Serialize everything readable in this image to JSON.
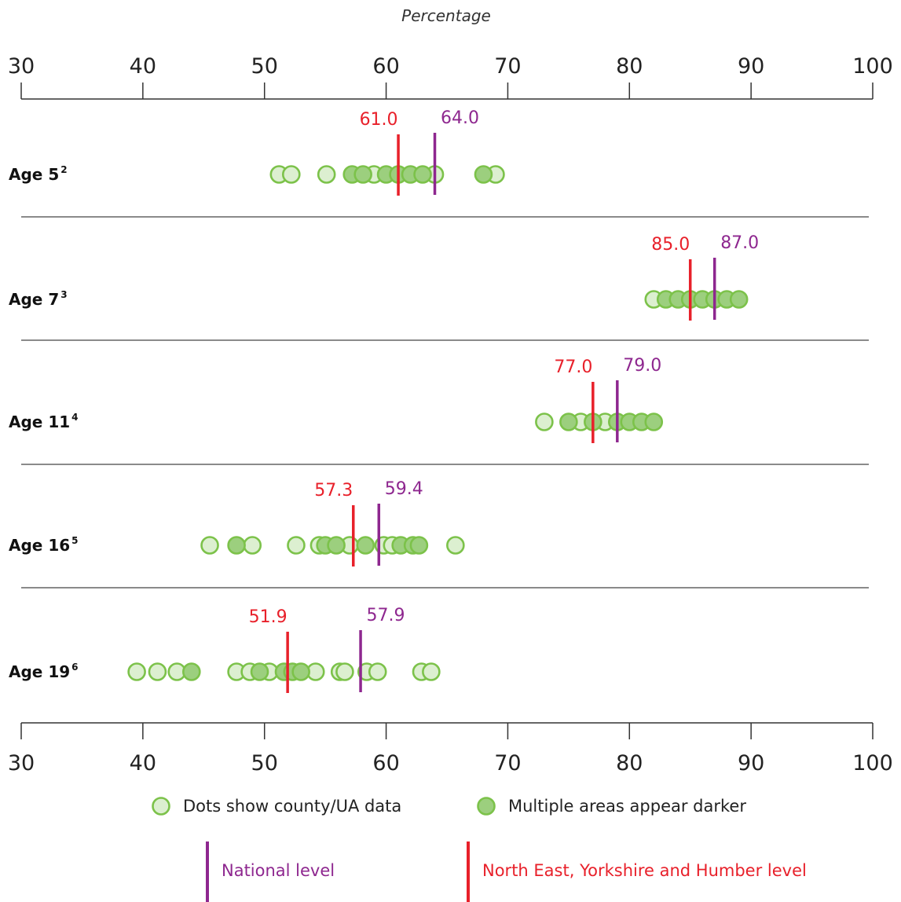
{
  "chart_data": {
    "type": "scatter",
    "title": "",
    "xlabel": "Percentage",
    "xlim": [
      30,
      100
    ],
    "xticks": [
      30,
      40,
      50,
      60,
      70,
      80,
      90,
      100
    ],
    "colors": {
      "dot_fill_single": "#dcefd0",
      "dot_fill_multiple": "#9ccf7e",
      "dot_stroke": "#7cc24a",
      "regional": "#e8202a",
      "national": "#8e278f",
      "axis": "#333333",
      "separator": "#444444"
    },
    "rows": [
      {
        "label": "Age 5",
        "sup": "2",
        "regional": 61.0,
        "regional_label": "61.0",
        "national": 64.0,
        "national_label": "64.0",
        "points": [
          {
            "x": 51.2,
            "m": false
          },
          {
            "x": 52.2,
            "m": false
          },
          {
            "x": 55.1,
            "m": false
          },
          {
            "x": 57.2,
            "m": true
          },
          {
            "x": 58.1,
            "m": true
          },
          {
            "x": 59.0,
            "m": false
          },
          {
            "x": 60.0,
            "m": true
          },
          {
            "x": 61.0,
            "m": true
          },
          {
            "x": 62.0,
            "m": true
          },
          {
            "x": 63.0,
            "m": true
          },
          {
            "x": 64.0,
            "m": false
          },
          {
            "x": 68.0,
            "m": true
          },
          {
            "x": 69.0,
            "m": false
          }
        ]
      },
      {
        "label": "Age 7",
        "sup": "3",
        "regional": 85.0,
        "regional_label": "85.0",
        "national": 87.0,
        "national_label": "87.0",
        "points": [
          {
            "x": 82.0,
            "m": false
          },
          {
            "x": 83.0,
            "m": true
          },
          {
            "x": 84.0,
            "m": true
          },
          {
            "x": 85.0,
            "m": true
          },
          {
            "x": 86.0,
            "m": true
          },
          {
            "x": 87.0,
            "m": true
          },
          {
            "x": 88.0,
            "m": true
          },
          {
            "x": 89.0,
            "m": true
          }
        ]
      },
      {
        "label": "Age 11",
        "sup": "4",
        "regional": 77.0,
        "regional_label": "77.0",
        "national": 79.0,
        "national_label": "79.0",
        "points": [
          {
            "x": 73.0,
            "m": false
          },
          {
            "x": 75.0,
            "m": true
          },
          {
            "x": 76.0,
            "m": false
          },
          {
            "x": 77.0,
            "m": true
          },
          {
            "x": 78.0,
            "m": false
          },
          {
            "x": 79.0,
            "m": true
          },
          {
            "x": 80.0,
            "m": true
          },
          {
            "x": 81.0,
            "m": true
          },
          {
            "x": 82.0,
            "m": true
          }
        ]
      },
      {
        "label": "Age 16",
        "sup": "5",
        "regional": 57.3,
        "regional_label": "57.3",
        "national": 59.4,
        "national_label": "59.4",
        "points": [
          {
            "x": 45.5,
            "m": false
          },
          {
            "x": 47.7,
            "m": true
          },
          {
            "x": 49.0,
            "m": false
          },
          {
            "x": 52.6,
            "m": false
          },
          {
            "x": 54.5,
            "m": false
          },
          {
            "x": 55.0,
            "m": true
          },
          {
            "x": 55.9,
            "m": true
          },
          {
            "x": 57.0,
            "m": false
          },
          {
            "x": 58.3,
            "m": true
          },
          {
            "x": 59.8,
            "m": false
          },
          {
            "x": 60.5,
            "m": false
          },
          {
            "x": 61.2,
            "m": true
          },
          {
            "x": 62.2,
            "m": true
          },
          {
            "x": 62.7,
            "m": true
          },
          {
            "x": 65.7,
            "m": false
          }
        ]
      },
      {
        "label": "Age 19",
        "sup": "6",
        "regional": 51.9,
        "regional_label": "51.9",
        "national": 57.9,
        "national_label": "57.9",
        "points": [
          {
            "x": 39.5,
            "m": false
          },
          {
            "x": 41.2,
            "m": false
          },
          {
            "x": 42.8,
            "m": false
          },
          {
            "x": 44.0,
            "m": true
          },
          {
            "x": 47.7,
            "m": false
          },
          {
            "x": 48.8,
            "m": false
          },
          {
            "x": 49.6,
            "m": true
          },
          {
            "x": 50.4,
            "m": false
          },
          {
            "x": 51.6,
            "m": true
          },
          {
            "x": 52.3,
            "m": true
          },
          {
            "x": 53.0,
            "m": true
          },
          {
            "x": 54.2,
            "m": false
          },
          {
            "x": 56.2,
            "m": false
          },
          {
            "x": 56.6,
            "m": false
          },
          {
            "x": 58.4,
            "m": false
          },
          {
            "x": 59.3,
            "m": false
          },
          {
            "x": 62.9,
            "m": false
          },
          {
            "x": 63.7,
            "m": false
          }
        ]
      }
    ]
  },
  "legend": {
    "single_dot": "Dots show county/UA data",
    "multiple_dots": "Multiple areas appear darker",
    "national": "National level",
    "regional": "North East, Yorkshire and Humber level"
  }
}
